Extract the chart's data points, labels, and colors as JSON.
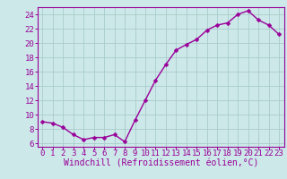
{
  "x": [
    0,
    1,
    2,
    3,
    4,
    5,
    6,
    7,
    8,
    9,
    10,
    11,
    12,
    13,
    14,
    15,
    16,
    17,
    18,
    19,
    20,
    21,
    22,
    23
  ],
  "y": [
    9.0,
    8.8,
    8.2,
    7.2,
    6.5,
    6.8,
    6.8,
    7.2,
    6.2,
    9.2,
    12.0,
    14.8,
    17.0,
    19.0,
    19.8,
    20.5,
    21.8,
    22.5,
    22.8,
    24.0,
    24.5,
    23.2,
    22.5,
    21.2
  ],
  "line_color": "#990099",
  "marker": "D",
  "markersize": 2.5,
  "linewidth": 1.0,
  "background_color": "#cce8e8",
  "grid_color": "#aacccc",
  "xlabel": "Windchill (Refroidissement éolien,°C)",
  "xlabel_color": "#990099",
  "xlabel_fontsize": 7,
  "tick_color": "#990099",
  "tick_fontsize": 6.5,
  "ylim": [
    5.5,
    25.0
  ],
  "yticks": [
    6,
    8,
    10,
    12,
    14,
    16,
    18,
    20,
    22,
    24
  ],
  "xlim": [
    -0.5,
    23.5
  ],
  "xticks": [
    0,
    1,
    2,
    3,
    4,
    5,
    6,
    7,
    8,
    9,
    10,
    11,
    12,
    13,
    14,
    15,
    16,
    17,
    18,
    19,
    20,
    21,
    22,
    23
  ]
}
